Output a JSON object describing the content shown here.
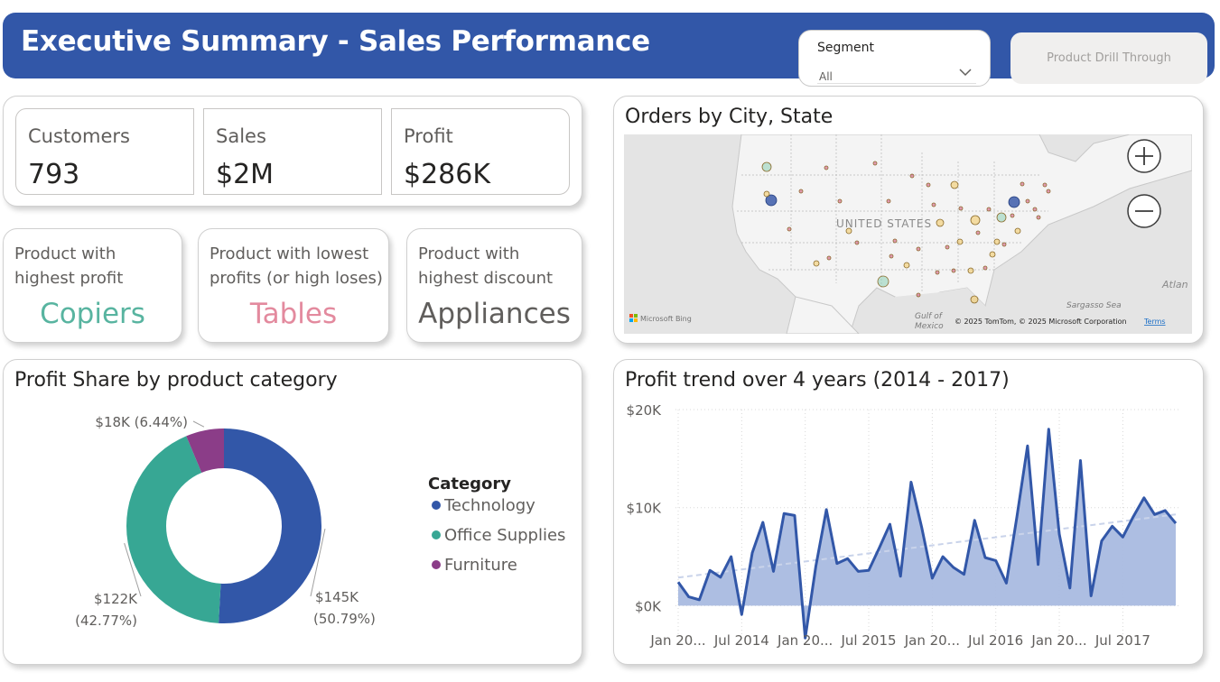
{
  "header": {
    "title": "Executive Summary - Sales Performance",
    "segment_label": "Segment",
    "segment_value": "All",
    "drill_label": "Product Drill Through"
  },
  "kpis": [
    {
      "label": "Customers",
      "value": "793"
    },
    {
      "label": "Sales",
      "value": "$2M"
    },
    {
      "label": "Profit",
      "value": "$286K"
    }
  ],
  "products": [
    {
      "label_line1": "Product with",
      "label_line2": "highest profit",
      "value": "Copiers",
      "color": "#58B4A0"
    },
    {
      "label_line1": "Product with lowest",
      "label_line2": "profits (or high loses)",
      "value": "Tables",
      "color": "#E38A9E"
    },
    {
      "label_line1": "Product with",
      "label_line2": "highest discount",
      "value": "Appliances",
      "color": "#605E5C"
    }
  ],
  "map": {
    "title": "Orders by City, State",
    "country_label": "UNITED STATES",
    "gulf_label_1": "Gulf of",
    "gulf_label_2": "Mexico",
    "sea_label": "Sargasso Sea",
    "ocean_label": "Atlan",
    "bing_label": "Microsoft Bing",
    "copyright": "© 2025 TomTom, © 2025 Microsoft Corporation",
    "terms": "Terms",
    "zoom_in_icon": "plus-icon",
    "zoom_out_icon": "minus-icon",
    "bubble_colors": {
      "blue": "#3B5BA9",
      "teal": "#8CCFB5",
      "yellow": "#F2C75C",
      "pink": "#D24E78"
    }
  },
  "chart_data": [
    {
      "type": "pie",
      "title": "Profit Share by product category",
      "legend_title": "Category",
      "legend_position": "right",
      "slices": [
        {
          "name": "Technology",
          "value": 145,
          "percent": 50.79,
          "label_value": "$145K",
          "label_percent": "(50.79%)",
          "color": "#3257A8"
        },
        {
          "name": "Office Supplies",
          "value": 122,
          "percent": 42.77,
          "label_value": "$122K",
          "label_percent": "(42.77%)",
          "color": "#37A794"
        },
        {
          "name": "Furniture",
          "value": 18,
          "percent": 6.44,
          "label_value": "$18K",
          "label_percent": "(6.44%)",
          "color": "#8B3D88"
        }
      ]
    },
    {
      "type": "area",
      "title": "Profit trend over 4 years (2014 - 2017)",
      "xlabel": "",
      "ylabel": "",
      "ylim": [
        -3000,
        20000
      ],
      "yticks": [
        0,
        10000,
        20000
      ],
      "ytick_labels": [
        "$0K",
        "$10K",
        "$20K"
      ],
      "xtick_labels": [
        "Jan 20...",
        "Jul 2014",
        "Jan 20...",
        "Jul 2015",
        "Jan 20...",
        "Jul 2016",
        "Jan 20...",
        "Jul 2017"
      ],
      "grid": true,
      "trendline": true,
      "x": [
        "2014-01",
        "2014-02",
        "2014-03",
        "2014-04",
        "2014-05",
        "2014-06",
        "2014-07",
        "2014-08",
        "2014-09",
        "2014-10",
        "2014-11",
        "2014-12",
        "2015-01",
        "2015-02",
        "2015-03",
        "2015-04",
        "2015-05",
        "2015-06",
        "2015-07",
        "2015-08",
        "2015-09",
        "2015-10",
        "2015-11",
        "2015-12",
        "2016-01",
        "2016-02",
        "2016-03",
        "2016-04",
        "2016-05",
        "2016-06",
        "2016-07",
        "2016-08",
        "2016-09",
        "2016-10",
        "2016-11",
        "2016-12",
        "2017-01",
        "2017-02",
        "2017-03",
        "2017-04",
        "2017-05",
        "2017-06",
        "2017-07",
        "2017-08",
        "2017-09",
        "2017-10",
        "2017-11",
        "2017-12"
      ],
      "series": [
        {
          "values": [
            2400,
            900,
            600,
            3600,
            2900,
            5000,
            -900,
            5400,
            8500,
            3500,
            9400,
            9200,
            -3300,
            4000,
            9800,
            4300,
            4800,
            3500,
            3600,
            5900,
            8300,
            3000,
            12600,
            8000,
            2800,
            5000,
            3900,
            3200,
            8700,
            4900,
            4600,
            2300,
            9100,
            16300,
            4200,
            18000,
            7300,
            1800,
            14800,
            1000,
            6600,
            8100,
            7000,
            9100,
            11000,
            9300,
            9700,
            8400
          ],
          "color": "#3257A8",
          "fill": "#A9BBE0"
        }
      ]
    }
  ]
}
